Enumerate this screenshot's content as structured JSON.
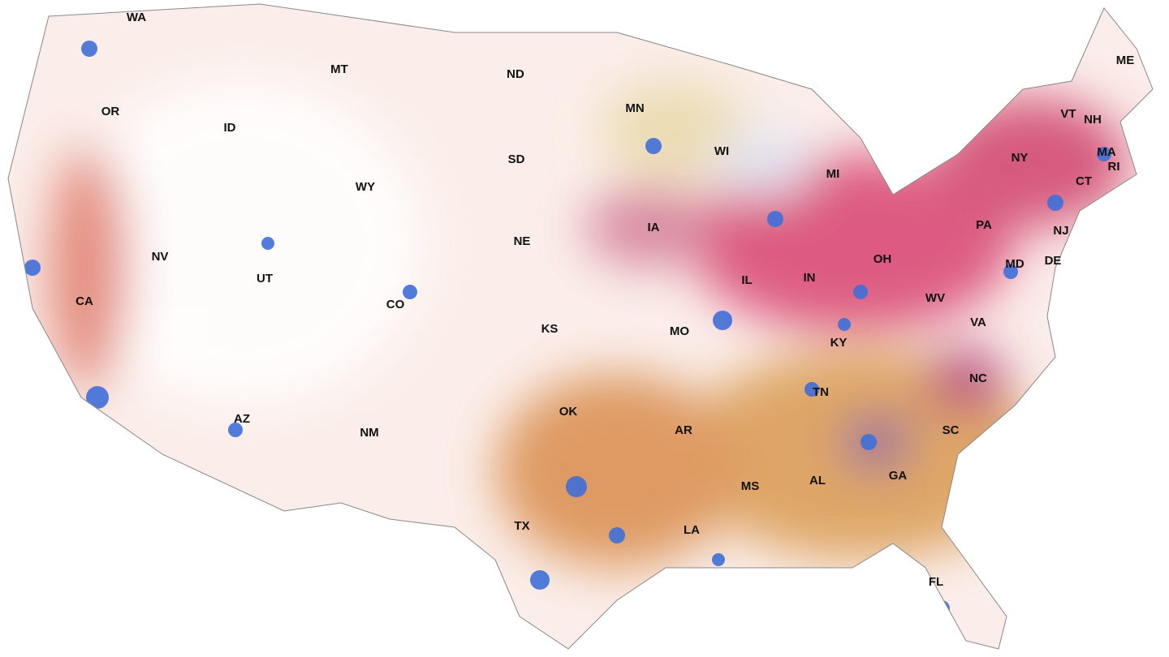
{
  "map": {
    "state_labels": [
      "WA",
      "MT",
      "ND",
      "MN",
      "OR",
      "ID",
      "SD",
      "WI",
      "MI",
      "WY",
      "NV",
      "NE",
      "IA",
      "UT",
      "CA",
      "CO",
      "KS",
      "MO",
      "IL",
      "IN",
      "OH",
      "KY",
      "WV",
      "VA",
      "NC",
      "TN",
      "AZ",
      "NM",
      "OK",
      "AR",
      "SC",
      "GA",
      "AL",
      "MS",
      "TX",
      "LA",
      "FL",
      "ME",
      "VT",
      "NH",
      "NY",
      "MA",
      "RI",
      "CT",
      "PA",
      "NJ",
      "MD",
      "DE"
    ]
  }
}
